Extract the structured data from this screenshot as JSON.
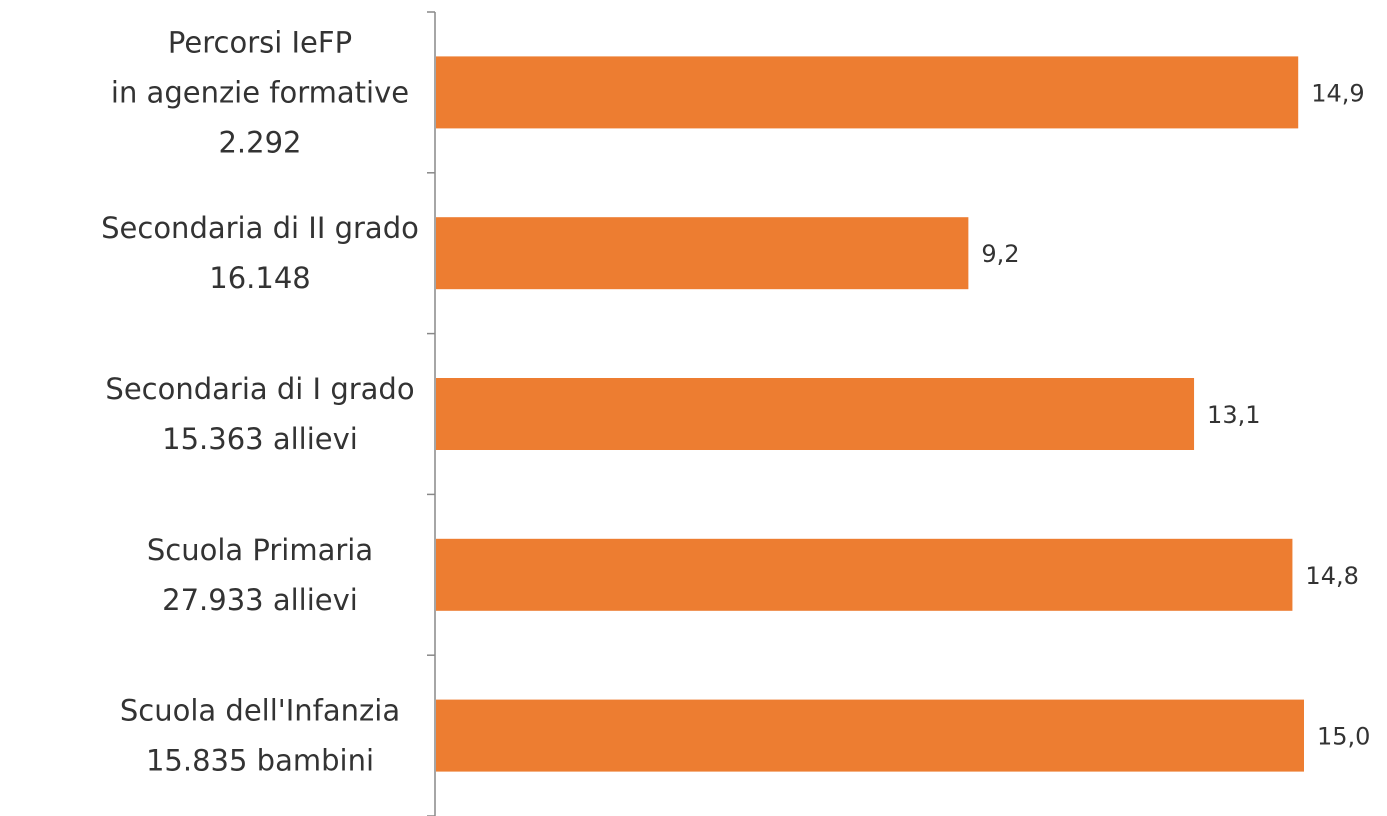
{
  "chart_data": {
    "type": "bar",
    "orientation": "horizontal",
    "categories": [
      [
        "Percorsi IeFP",
        "in agenzie formative",
        "2.292"
      ],
      [
        "Secondaria di II grado",
        "16.148"
      ],
      [
        "Secondaria di I grado",
        "15.363 allievi"
      ],
      [
        "Scuola Primaria",
        "27.933 allievi"
      ],
      [
        "Scuola dell'Infanzia",
        "15.835 bambini"
      ]
    ],
    "values": [
      14.9,
      9.2,
      13.1,
      14.8,
      15.0
    ],
    "value_labels": [
      "14,9",
      "9,2",
      "13,1",
      "14,8",
      "15,0"
    ],
    "xlim": [
      0,
      15.0
    ],
    "bar_color": "#ED7D31",
    "axis_color": "#888888",
    "grid": false,
    "legend": "none"
  }
}
